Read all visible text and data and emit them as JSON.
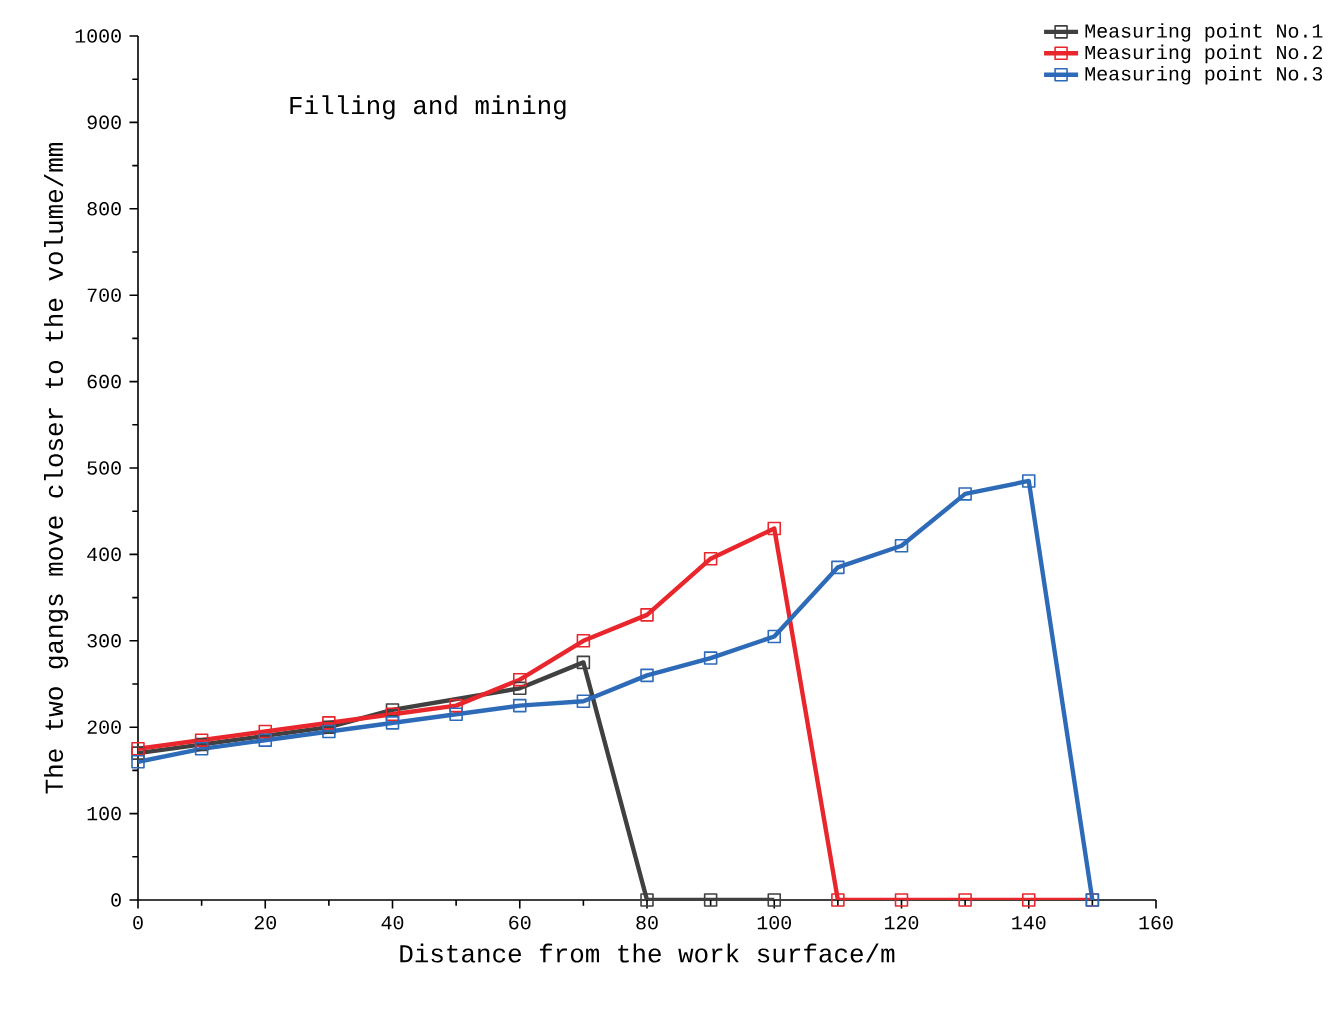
{
  "chart_data": {
    "type": "line",
    "xlabel": "Distance from the work surface/m",
    "ylabel": "The two gangs move closer to the volume/mm",
    "annotations": [
      "Filling and mining"
    ],
    "xlim": [
      0,
      160
    ],
    "xticks": [
      0,
      20,
      40,
      60,
      80,
      100,
      120,
      140,
      160
    ],
    "ylim": [
      0,
      1000
    ],
    "yticks": [
      0,
      100,
      200,
      300,
      400,
      500,
      600,
      700,
      800,
      900,
      1000
    ],
    "legend": "top right",
    "marker": "square",
    "line_style": "solid",
    "grid": false,
    "series": [
      {
        "name": "Measuring point No.1",
        "color": "#404040",
        "x": [
          0,
          10,
          20,
          30,
          40,
          50,
          60,
          70,
          80,
          90,
          100
        ],
        "values": [
          170,
          180,
          null,
          200,
          220,
          null,
          245,
          275,
          0,
          0,
          0
        ]
      },
      {
        "name": "Measuring point No.2",
        "color": "#e8262c",
        "x": [
          0,
          10,
          20,
          30,
          40,
          50,
          60,
          70,
          80,
          90,
          100,
          110,
          120,
          130,
          140,
          150
        ],
        "values": [
          175,
          185,
          195,
          205,
          215,
          225,
          255,
          300,
          330,
          395,
          430,
          0,
          0,
          0,
          0,
          0
        ]
      },
      {
        "name": "Measuring point No.3",
        "color": "#2d6ab8",
        "x": [
          0,
          10,
          20,
          30,
          40,
          50,
          60,
          70,
          80,
          90,
          100,
          110,
          120,
          130,
          140,
          150
        ],
        "values": [
          160,
          175,
          185,
          195,
          205,
          215,
          225,
          230,
          260,
          280,
          305,
          385,
          410,
          470,
          485,
          0
        ]
      }
    ]
  }
}
